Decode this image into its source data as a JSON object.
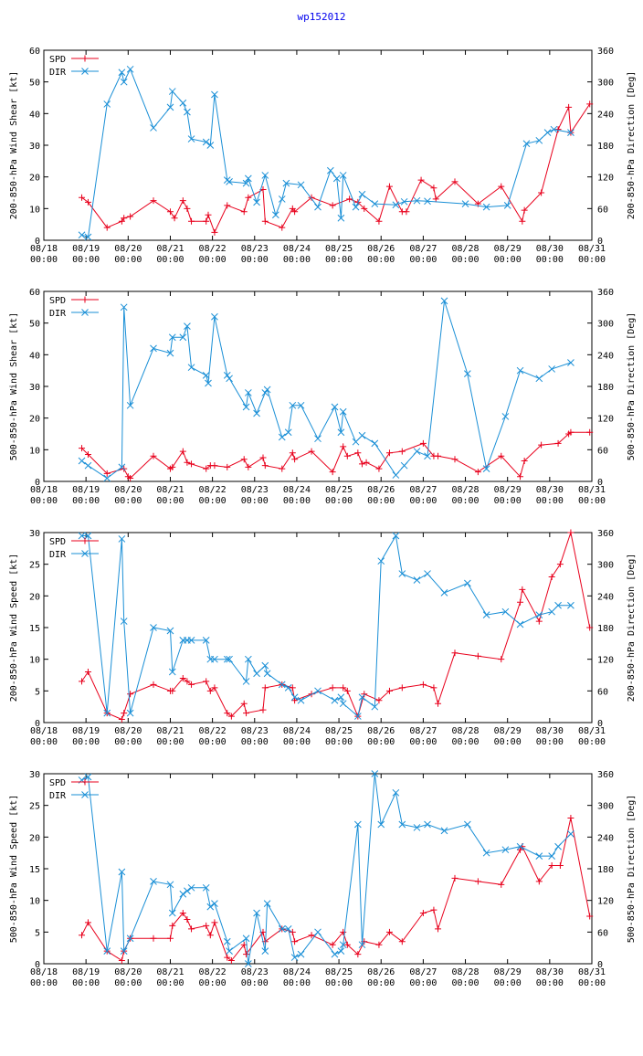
{
  "title": "wp152012",
  "colors": {
    "spd": "#e8001c",
    "dir": "#1a8fd6",
    "title": "#0000ee"
  },
  "x_ticks": [
    {
      "day": 0,
      "date": "08/18",
      "time": "00:00"
    },
    {
      "day": 1,
      "date": "08/19",
      "time": "00:00"
    },
    {
      "day": 2,
      "date": "08/20",
      "time": "00:00"
    },
    {
      "day": 3,
      "date": "08/21",
      "time": "00:00"
    },
    {
      "day": 4,
      "date": "08/22",
      "time": "00:00"
    },
    {
      "day": 5,
      "date": "08/23",
      "time": "00:00"
    },
    {
      "day": 6,
      "date": "08/24",
      "time": "00:00"
    },
    {
      "day": 7,
      "date": "08/25",
      "time": "00:00"
    },
    {
      "day": 8,
      "date": "08/26",
      "time": "00:00"
    },
    {
      "day": 9,
      "date": "08/27",
      "time": "00:00"
    },
    {
      "day": 10,
      "date": "08/28",
      "time": "00:00"
    },
    {
      "day": 11,
      "date": "08/29",
      "time": "00:00"
    },
    {
      "day": 12,
      "date": "08/30",
      "time": "00:00"
    },
    {
      "day": 13,
      "date": "08/31",
      "time": "00:00"
    }
  ],
  "chart_data": [
    {
      "type": "line",
      "ylabel": "200-850-hPa Wind Shear [kt]",
      "y2label": "200-850-hPa Direction [Deg]",
      "xlim": [
        0,
        13
      ],
      "ylim": [
        0,
        60
      ],
      "yticks": [
        0,
        10,
        20,
        30,
        40,
        50,
        60
      ],
      "y2lim": [
        0,
        360
      ],
      "y2ticks": [
        0,
        60,
        120,
        180,
        240,
        300,
        360
      ],
      "legend": [
        "SPD",
        "DIR"
      ],
      "series": [
        {
          "name": "SPD",
          "axis": "left",
          "x": [
            0.9,
            1.05,
            1.5,
            1.85,
            1.9,
            2.05,
            2.6,
            3.0,
            3.1,
            3.3,
            3.4,
            3.5,
            3.85,
            3.9,
            4.05,
            4.35,
            4.75,
            4.85,
            5.2,
            5.25,
            5.65,
            5.9,
            5.95,
            6.35,
            6.85,
            7.25,
            7.45,
            7.6,
            7.95,
            8.2,
            8.5,
            8.6,
            8.95,
            9.25,
            9.3,
            9.75,
            10.3,
            10.85,
            11.35,
            11.4,
            11.8,
            12.2,
            12.45,
            12.5,
            12.95
          ],
          "y": [
            13.5,
            12,
            4,
            6,
            7,
            7.5,
            12.5,
            9,
            7,
            12.5,
            10,
            6,
            6,
            8,
            2.5,
            11,
            9,
            13.5,
            16,
            6,
            4,
            10,
            9,
            13.5,
            11,
            13,
            12,
            10,
            6,
            17,
            9,
            9,
            19,
            16.5,
            13,
            18.5,
            11.5,
            17,
            6,
            9.5,
            15,
            35,
            42,
            34,
            43
          ]
        },
        {
          "name": "DIR",
          "axis": "right",
          "x": [
            0.9,
            1.05,
            1.5,
            1.85,
            1.9,
            2.05,
            2.6,
            3.0,
            3.05,
            3.3,
            3.4,
            3.5,
            3.85,
            3.95,
            4.05,
            4.35,
            4.4,
            4.8,
            4.85,
            5.05,
            5.25,
            5.5,
            5.65,
            5.75,
            6.1,
            6.5,
            6.8,
            6.95,
            7.05,
            7.1,
            7.4,
            7.55,
            7.85,
            8.35,
            8.55,
            8.85,
            9.1,
            10.0,
            10.5,
            11.0,
            11.45,
            11.75,
            11.95,
            12.1,
            12.5
          ],
          "y": [
            10,
            6,
            258,
            318,
            300,
            324,
            213,
            252,
            282,
            260,
            243,
            192,
            186,
            180,
            276,
            114,
            111,
            108,
            117,
            72,
            123,
            48,
            78,
            108,
            105,
            63,
            132,
            117,
            42,
            123,
            63,
            87,
            69,
            67,
            73,
            75,
            74,
            69,
            63,
            66,
            183,
            189,
            204,
            210,
            204
          ]
        }
      ]
    },
    {
      "type": "line",
      "ylabel": "500-850-hPa Wind Shear [kt]",
      "y2label": "500-850-hPa Direction [Deg]",
      "xlim": [
        0,
        13
      ],
      "ylim": [
        0,
        60
      ],
      "yticks": [
        0,
        10,
        20,
        30,
        40,
        50,
        60
      ],
      "y2lim": [
        0,
        360
      ],
      "y2ticks": [
        0,
        60,
        120,
        180,
        240,
        300,
        360
      ],
      "legend": [
        "SPD",
        "DIR"
      ],
      "series": [
        {
          "name": "SPD",
          "axis": "left",
          "x": [
            0.9,
            1.05,
            1.5,
            1.9,
            2.0,
            2.05,
            2.6,
            3.0,
            3.05,
            3.3,
            3.4,
            3.5,
            3.85,
            3.95,
            4.05,
            4.35,
            4.75,
            4.85,
            5.2,
            5.25,
            5.65,
            5.9,
            5.95,
            6.35,
            6.85,
            7.1,
            7.2,
            7.45,
            7.55,
            7.65,
            7.95,
            8.2,
            8.5,
            9.0,
            9.25,
            9.35,
            9.75,
            10.3,
            10.85,
            11.3,
            11.4,
            11.8,
            12.2,
            12.45,
            12.5,
            12.95
          ],
          "y": [
            10.5,
            8.5,
            2.5,
            4,
            1.5,
            1,
            8,
            4,
            4.5,
            9.5,
            6,
            5.5,
            4,
            5,
            5,
            4.5,
            7,
            4.5,
            7.5,
            5,
            4,
            9,
            7,
            9.5,
            3,
            11,
            8,
            9,
            5.5,
            6,
            4,
            9,
            9.5,
            12,
            8,
            8,
            7,
            3,
            8,
            1.5,
            6.5,
            11.5,
            12,
            15,
            15.5,
            15.5
          ]
        },
        {
          "name": "DIR",
          "axis": "right",
          "x": [
            0.9,
            1.05,
            1.5,
            1.85,
            1.9,
            2.05,
            2.6,
            3.0,
            3.05,
            3.3,
            3.4,
            3.5,
            3.85,
            3.9,
            4.05,
            4.35,
            4.4,
            4.8,
            4.85,
            5.05,
            5.25,
            5.3,
            5.65,
            5.8,
            5.9,
            6.1,
            6.5,
            6.9,
            7.05,
            7.1,
            7.4,
            7.55,
            7.85,
            8.35,
            8.55,
            8.85,
            9.1,
            9.5,
            10.05,
            10.5,
            10.95,
            11.3,
            11.75,
            12.05,
            12.5
          ],
          "y": [
            39,
            30,
            6,
            27,
            330,
            144,
            252,
            243,
            273,
            273,
            294,
            216,
            201,
            186,
            312,
            201,
            195,
            141,
            168,
            129,
            168,
            174,
            84,
            93,
            144,
            144,
            81,
            141,
            93,
            132,
            75,
            87,
            72,
            12,
            30,
            57,
            48,
            342,
            204,
            24,
            123,
            210,
            195,
            213,
            225
          ]
        }
      ]
    },
    {
      "type": "line",
      "ylabel": "200-850-hPa Wind Speed [kt]",
      "y2label": "200-850-hPa Direction [Deg]",
      "xlim": [
        0,
        13
      ],
      "ylim": [
        0,
        30
      ],
      "yticks": [
        0,
        5,
        10,
        15,
        20,
        25,
        30
      ],
      "y2lim": [
        0,
        360
      ],
      "y2ticks": [
        0,
        60,
        120,
        180,
        240,
        300,
        360
      ],
      "legend": [
        "SPD",
        "DIR"
      ],
      "series": [
        {
          "name": "SPD",
          "axis": "left",
          "x": [
            0.9,
            1.05,
            1.5,
            1.85,
            1.9,
            2.05,
            2.6,
            3.0,
            3.05,
            3.3,
            3.4,
            3.5,
            3.85,
            3.95,
            4.05,
            4.35,
            4.45,
            4.75,
            4.8,
            5.2,
            5.25,
            5.65,
            5.9,
            5.95,
            6.35,
            6.85,
            7.1,
            7.2,
            7.45,
            7.6,
            7.95,
            8.2,
            8.5,
            9.0,
            9.25,
            9.35,
            9.75,
            10.3,
            10.85,
            11.3,
            11.35,
            11.75,
            12.05,
            12.25,
            12.5,
            12.95
          ],
          "y": [
            6.5,
            8,
            1.5,
            0.5,
            1.5,
            4.5,
            6,
            5,
            5,
            7,
            6.5,
            6,
            6.5,
            5,
            5.5,
            1.5,
            1,
            3,
            1.5,
            2,
            5.5,
            6,
            5.5,
            3.5,
            4.5,
            5.5,
            5.5,
            5,
            1,
            4.5,
            3.5,
            5,
            5.5,
            6,
            5.5,
            3,
            11,
            10.5,
            10,
            19,
            21,
            16,
            23,
            25,
            30,
            15
          ]
        },
        {
          "name": "DIR",
          "axis": "right",
          "x": [
            0.9,
            1.05,
            1.5,
            1.85,
            1.9,
            2.05,
            2.6,
            3.0,
            3.05,
            3.3,
            3.4,
            3.5,
            3.85,
            3.95,
            4.05,
            4.35,
            4.4,
            4.8,
            4.85,
            5.05,
            5.25,
            5.3,
            5.65,
            5.8,
            5.95,
            6.1,
            6.5,
            6.9,
            7.05,
            7.1,
            7.45,
            7.55,
            7.85,
            8.0,
            8.35,
            8.5,
            8.85,
            9.1,
            9.5,
            10.05,
            10.5,
            10.95,
            11.3,
            11.75,
            12.05,
            12.2,
            12.5
          ],
          "y": [
            354,
            354,
            18,
            348,
            192,
            18,
            180,
            174,
            96,
            156,
            156,
            156,
            156,
            120,
            120,
            120,
            120,
            78,
            120,
            93,
            108,
            93,
            72,
            66,
            48,
            42,
            60,
            42,
            48,
            36,
            12,
            48,
            30,
            306,
            354,
            282,
            270,
            282,
            246,
            264,
            204,
            210,
            186,
            204,
            210,
            222,
            222
          ]
        }
      ]
    },
    {
      "type": "line",
      "ylabel": "500-850-hPa Wind Speed [kt]",
      "y2label": "500-850-hPa Direction [Deg]",
      "xlim": [
        0,
        13
      ],
      "ylim": [
        0,
        30
      ],
      "yticks": [
        0,
        5,
        10,
        15,
        20,
        25,
        30
      ],
      "y2lim": [
        0,
        360
      ],
      "y2ticks": [
        0,
        60,
        120,
        180,
        240,
        300,
        360
      ],
      "legend": [
        "SPD",
        "DIR"
      ],
      "series": [
        {
          "name": "SPD",
          "axis": "left",
          "x": [
            0.9,
            1.05,
            1.5,
            1.85,
            1.9,
            2.05,
            2.6,
            3.0,
            3.05,
            3.3,
            3.4,
            3.5,
            3.85,
            3.95,
            4.05,
            4.35,
            4.45,
            4.75,
            4.8,
            5.2,
            5.25,
            5.65,
            5.9,
            5.95,
            6.35,
            6.85,
            7.1,
            7.2,
            7.45,
            7.6,
            7.95,
            8.2,
            8.5,
            9.0,
            9.25,
            9.35,
            9.75,
            10.3,
            10.85,
            11.3,
            11.35,
            11.75,
            12.05,
            12.25,
            12.5,
            12.95
          ],
          "y": [
            4.5,
            6.5,
            2,
            0.5,
            2,
            4,
            4,
            4,
            6,
            8,
            7,
            5.5,
            6,
            4.5,
            6.5,
            1,
            0.5,
            3,
            1.5,
            5,
            3.5,
            5.5,
            5,
            3.5,
            4.5,
            3,
            5,
            3,
            1.5,
            3.5,
            3,
            5,
            3.5,
            8,
            8.5,
            5.5,
            13.5,
            13,
            12.5,
            18,
            18.5,
            13,
            15.5,
            15.5,
            23,
            7.5
          ]
        },
        {
          "name": "DIR",
          "axis": "right",
          "x": [
            0.9,
            1.05,
            1.5,
            1.85,
            1.9,
            2.05,
            2.6,
            3.0,
            3.05,
            3.3,
            3.4,
            3.5,
            3.85,
            3.95,
            4.05,
            4.35,
            4.4,
            4.8,
            4.85,
            5.05,
            5.25,
            5.3,
            5.65,
            5.8,
            5.95,
            6.1,
            6.5,
            6.9,
            7.05,
            7.1,
            7.45,
            7.55,
            7.85,
            8.0,
            8.35,
            8.5,
            8.85,
            9.1,
            9.5,
            10.05,
            10.5,
            10.95,
            11.3,
            11.75,
            12.05,
            12.2,
            12.5
          ],
          "y": [
            348,
            354,
            24,
            174,
            24,
            48,
            156,
            150,
            96,
            132,
            138,
            144,
            144,
            108,
            114,
            42,
            24,
            48,
            0,
            96,
            24,
            114,
            66,
            66,
            12,
            18,
            60,
            18,
            24,
            36,
            264,
            36,
            360,
            264,
            324,
            264,
            258,
            264,
            252,
            264,
            210,
            216,
            222,
            204,
            204,
            222,
            246
          ]
        }
      ]
    }
  ]
}
